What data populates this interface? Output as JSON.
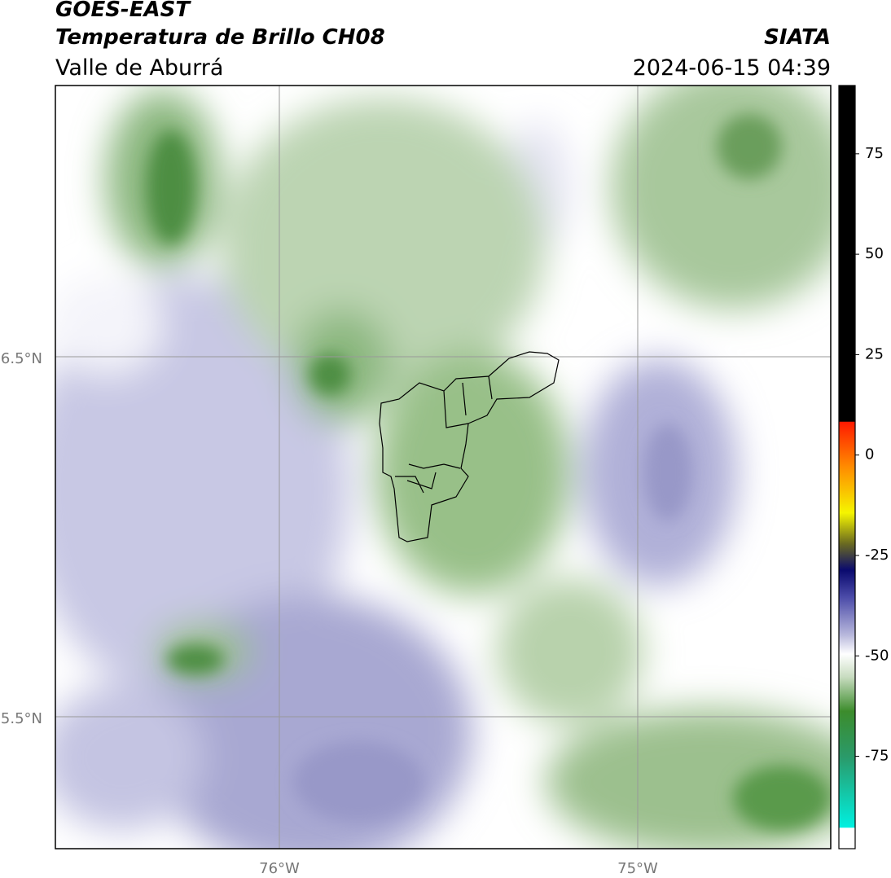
{
  "header": {
    "satellite": "GOES-EAST",
    "product": "Temperatura de Brillo CH08",
    "region": "Valle de Aburrá",
    "source": "SIATA",
    "datetime": "2024-06-15 04:39"
  },
  "map": {
    "lat_labels": [
      "6.5°N",
      "5.5°N"
    ],
    "lon_labels": [
      "76°W",
      "75°W"
    ]
  },
  "colorbar": {
    "lim": [
      -98,
      92
    ],
    "ticks": [
      75,
      50,
      25,
      0,
      -25,
      -50,
      -75
    ]
  }
}
